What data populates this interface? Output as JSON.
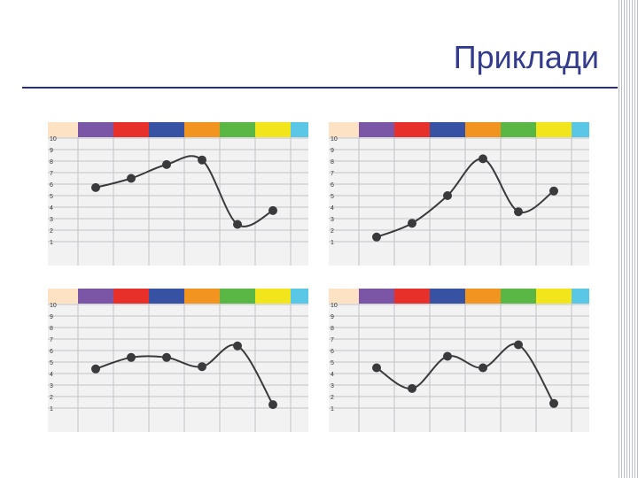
{
  "slide": {
    "title": "Приклади"
  },
  "palette": [
    "#fde3c4",
    "#7b55a6",
    "#e8302a",
    "#3852a3",
    "#f29420",
    "#5ab645",
    "#f2e51c",
    "#5bc7e6"
  ],
  "chart_data": [
    {
      "type": "line",
      "x": [
        1,
        2,
        3,
        4,
        5,
        6
      ],
      "y": [
        5.7,
        6.5,
        7.7,
        8.1,
        2.5,
        3.7
      ],
      "ylim": [
        0,
        10
      ],
      "yticks": [
        1,
        2,
        3,
        4,
        5,
        6,
        7,
        8,
        9,
        10
      ],
      "grid": true,
      "smooth": true
    },
    {
      "type": "line",
      "x": [
        1,
        2,
        3,
        4,
        5,
        6
      ],
      "y": [
        1.4,
        2.6,
        5.0,
        8.2,
        3.6,
        5.4
      ],
      "ylim": [
        0,
        10
      ],
      "yticks": [
        1,
        2,
        3,
        4,
        5,
        6,
        7,
        8,
        9,
        10
      ],
      "grid": true,
      "smooth": true
    },
    {
      "type": "line",
      "x": [
        1,
        2,
        3,
        4,
        5,
        6
      ],
      "y": [
        4.4,
        5.4,
        5.4,
        4.6,
        6.4,
        1.3
      ],
      "ylim": [
        0,
        10
      ],
      "yticks": [
        1,
        2,
        3,
        4,
        5,
        6,
        7,
        8,
        9,
        10
      ],
      "grid": true,
      "smooth": true
    },
    {
      "type": "line",
      "x": [
        1,
        2,
        3,
        4,
        5,
        6
      ],
      "y": [
        4.5,
        2.7,
        5.5,
        4.5,
        6.5,
        1.4
      ],
      "ylim": [
        0,
        10
      ],
      "yticks": [
        1,
        2,
        3,
        4,
        5,
        6,
        7,
        8,
        9,
        10
      ],
      "grid": true,
      "smooth": true
    }
  ]
}
